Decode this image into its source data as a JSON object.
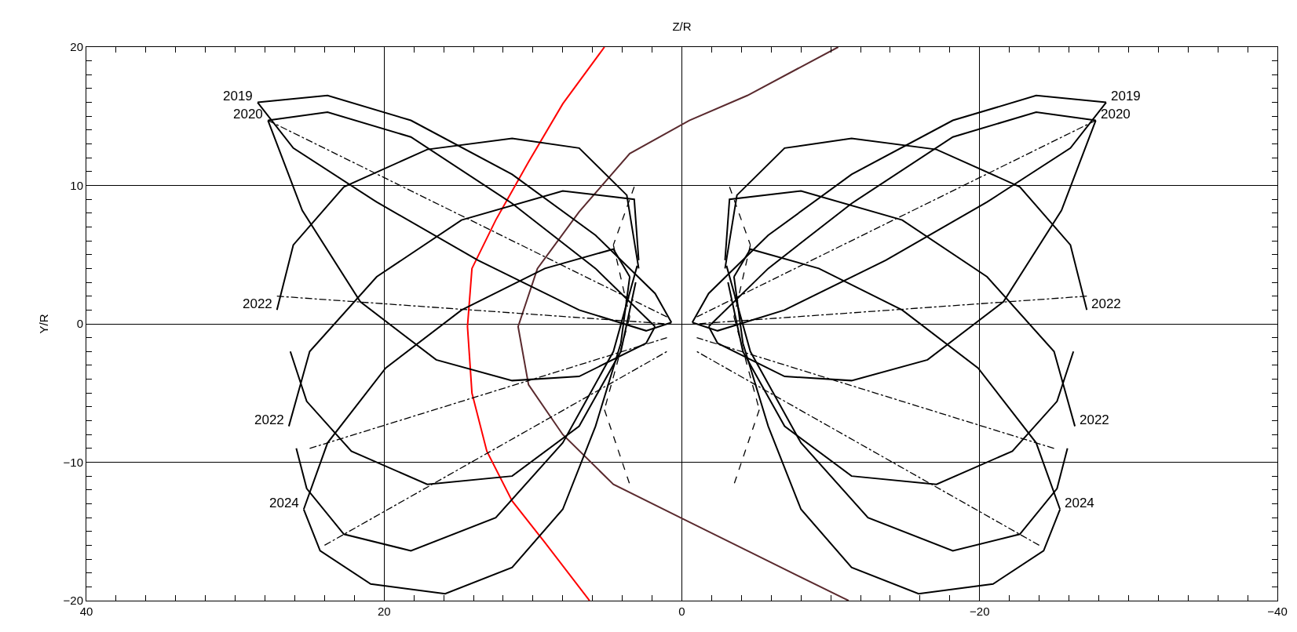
{
  "chart_data": {
    "type": "line",
    "xlabel": "Z/R",
    "ylabel": "Y/R",
    "xlim": [
      40,
      -40
    ],
    "ylim": [
      -20,
      20
    ],
    "xticks": [
      40,
      20,
      0,
      -20,
      -40
    ],
    "yticks": [
      -20,
      -10,
      0,
      10,
      20
    ],
    "grid": true,
    "marker": "none",
    "series": [
      {
        "color": "#ff0000",
        "line_style": "solid",
        "x": [
          5.2,
          8.0,
          10.3,
          12.5,
          14.1,
          14.4,
          14.1,
          13.1,
          11.4,
          9.2,
          6.2
        ],
        "values": [
          20,
          15.9,
          11.7,
          7.5,
          4.0,
          -0.2,
          -5.0,
          -9.2,
          -12.8,
          -15.8,
          -20
        ]
      },
      {
        "color": "#5a2a2e",
        "line_style": "solid",
        "x": [
          -10.5,
          -4.4,
          -0.5,
          3.5,
          6.9,
          9.7,
          11.0,
          10.3,
          8.0,
          4.6,
          0.1,
          -4.4,
          -11.2
        ],
        "values": [
          20,
          16.5,
          14.7,
          12.3,
          8.1,
          4.0,
          -0.2,
          -4.4,
          -8.0,
          -11.6,
          -14.0,
          -16.4,
          -20
        ]
      },
      {
        "color": "#000000",
        "line_style": "solid",
        "x": [
          28.5,
          23.8,
          18.2,
          11.4,
          5.8,
          1.8,
          0.7
        ],
        "values": [
          16.0,
          16.5,
          14.7,
          10.8,
          6.4,
          2.2,
          0.1
        ]
      },
      {
        "color": "#000000",
        "line_style": "solid",
        "x": [
          0.7,
          2.4,
          6.9,
          13.7,
          20.5,
          26.1,
          28.5
        ],
        "values": [
          0.1,
          -0.5,
          1.0,
          4.6,
          8.8,
          12.7,
          16.0
        ]
      },
      {
        "color": "#000000",
        "line_style": "solid",
        "x": [
          27.2,
          26.1,
          22.7,
          17.1,
          11.4,
          6.9,
          3.7,
          2.9
        ],
        "values": [
          1.0,
          5.7,
          9.9,
          12.6,
          13.4,
          12.7,
          9.3,
          4.0
        ]
      },
      {
        "color": "#000000",
        "line_style": "solid",
        "x": [
          3.1,
          4.1,
          6.9,
          11.4,
          17.1,
          22.2,
          25.2,
          26.3
        ],
        "values": [
          3.0,
          -2.0,
          -7.4,
          -11.0,
          -11.6,
          -9.2,
          -5.6,
          -2.0
        ]
      },
      {
        "color": "#000000",
        "line_style": "solid",
        "x": [
          26.4,
          25.0,
          20.5,
          14.8,
          8.0,
          3.2,
          2.9
        ],
        "values": [
          -7.4,
          -2.0,
          3.4,
          7.5,
          9.6,
          9.0,
          4.6
        ]
      },
      {
        "color": "#000000",
        "line_style": "solid",
        "x": [
          3.0,
          4.6,
          8.0,
          12.5,
          18.2,
          22.7,
          25.2,
          25.9
        ],
        "values": [
          4.2,
          -2.0,
          -8.6,
          -14.0,
          -16.4,
          -15.2,
          -11.9,
          -9.0
        ]
      },
      {
        "color": "#000000",
        "line_style": "solid",
        "x": [
          25.4,
          23.8,
          19.9,
          14.8,
          9.2,
          4.6,
          3.5
        ],
        "values": [
          -13.4,
          -8.6,
          -3.2,
          1.0,
          4.0,
          5.4,
          3.4
        ]
      },
      {
        "color": "#000000",
        "line_style": "solid",
        "x": [
          3.5,
          4.1,
          5.8,
          8.0,
          11.4,
          15.9,
          20.9,
          24.3,
          25.4
        ],
        "values": [
          3.4,
          -1.4,
          -7.4,
          -13.4,
          -17.6,
          -19.5,
          -18.8,
          -16.4,
          -13.4
        ]
      },
      {
        "color": "#000000",
        "line_style": "solid",
        "x": [
          27.8,
          23.8,
          18.2,
          11.4,
          5.8,
          1.8
        ],
        "values": [
          14.7,
          15.3,
          13.5,
          8.7,
          4.0,
          -0.2
        ]
      },
      {
        "color": "#000000",
        "line_style": "solid",
        "x": [
          1.8,
          2.4,
          6.9,
          11.4,
          16.5,
          21.6,
          25.5,
          27.8
        ],
        "values": [
          -0.2,
          -1.4,
          -3.8,
          -4.1,
          -2.6,
          1.6,
          8.2,
          14.7
        ]
      },
      {
        "color": "#000000",
        "line_style": "dashed",
        "x": [
          3.2,
          4.6
        ],
        "values": [
          9.9,
          5.7
        ]
      },
      {
        "color": "#000000",
        "line_style": "dashed",
        "x": [
          4.6,
          3.5
        ],
        "values": [
          5.7,
          0.5
        ]
      },
      {
        "color": "#000000",
        "line_style": "dashed",
        "x": [
          3.5,
          5.2
        ],
        "values": [
          0.5,
          -6.2
        ]
      },
      {
        "color": "#000000",
        "line_style": "dashed",
        "x": [
          5.2,
          3.5
        ],
        "values": [
          -6.2,
          -11.6
        ]
      },
      {
        "color": "#000000",
        "line_style": "dotted",
        "x": [
          27.8,
          1
        ],
        "values": [
          14.7,
          0.5
        ]
      },
      {
        "color": "#000000",
        "line_style": "dotted",
        "x": [
          27.2,
          1
        ],
        "values": [
          2,
          0
        ]
      },
      {
        "color": "#000000",
        "line_style": "dotted",
        "x": [
          25,
          1
        ],
        "values": [
          -9,
          -1
        ]
      },
      {
        "color": "#000000",
        "line_style": "dotted",
        "x": [
          24,
          1
        ],
        "values": [
          -16,
          -2
        ]
      },
      {
        "color": "#000000",
        "line_style": "solid",
        "x": [
          -28.5,
          -23.8,
          -18.2,
          -11.4,
          -5.8,
          -1.8,
          -0.7
        ],
        "values": [
          16.0,
          16.5,
          14.7,
          10.8,
          6.4,
          2.2,
          0.1
        ]
      },
      {
        "color": "#000000",
        "line_style": "solid",
        "x": [
          -0.7,
          -2.4,
          -6.9,
          -13.7,
          -20.5,
          -26.1,
          -28.5
        ],
        "values": [
          0.1,
          -0.5,
          1.0,
          4.6,
          8.8,
          12.7,
          16.0
        ]
      },
      {
        "color": "#000000",
        "line_style": "solid",
        "x": [
          -27.2,
          -26.1,
          -22.7,
          -17.1,
          -11.4,
          -6.9,
          -3.7,
          -2.9
        ],
        "values": [
          1.0,
          5.7,
          9.9,
          12.6,
          13.4,
          12.7,
          9.3,
          4.0
        ]
      },
      {
        "color": "#000000",
        "line_style": "solid",
        "x": [
          -3.1,
          -4.1,
          -6.9,
          -11.4,
          -17.1,
          -22.2,
          -25.2,
          -26.3
        ],
        "values": [
          3.0,
          -2.0,
          -7.4,
          -11.0,
          -11.6,
          -9.2,
          -5.6,
          -2.0
        ]
      },
      {
        "color": "#000000",
        "line_style": "solid",
        "x": [
          -26.4,
          -25.0,
          -20.5,
          -14.8,
          -8.0,
          -3.2,
          -2.9
        ],
        "values": [
          -7.4,
          -2.0,
          3.4,
          7.5,
          9.6,
          9.0,
          4.6
        ]
      },
      {
        "color": "#000000",
        "line_style": "solid",
        "x": [
          -3.0,
          -4.6,
          -8.0,
          -12.5,
          -18.2,
          -22.7,
          -25.2,
          -25.9
        ],
        "values": [
          4.2,
          -2.0,
          -8.6,
          -14.0,
          -16.4,
          -15.2,
          -11.9,
          -9.0
        ]
      },
      {
        "color": "#000000",
        "line_style": "solid",
        "x": [
          -25.4,
          -23.8,
          -19.9,
          -14.8,
          -9.2,
          -4.6,
          -3.5
        ],
        "values": [
          -13.4,
          -8.6,
          -3.2,
          1.0,
          4.0,
          5.4,
          3.4
        ]
      },
      {
        "color": "#000000",
        "line_style": "solid",
        "x": [
          -3.5,
          -4.1,
          -5.8,
          -8.0,
          -11.4,
          -15.9,
          -20.9,
          -24.3,
          -25.4
        ],
        "values": [
          3.4,
          -1.4,
          -7.4,
          -13.4,
          -17.6,
          -19.5,
          -18.8,
          -16.4,
          -13.4
        ]
      },
      {
        "color": "#000000",
        "line_style": "solid",
        "x": [
          -27.8,
          -23.8,
          -18.2,
          -11.4,
          -5.8,
          -1.8
        ],
        "values": [
          14.7,
          15.3,
          13.5,
          8.7,
          4.0,
          -0.2
        ]
      },
      {
        "color": "#000000",
        "line_style": "solid",
        "x": [
          -1.8,
          -2.4,
          -6.9,
          -11.4,
          -16.5,
          -21.6,
          -25.5,
          -27.8
        ],
        "values": [
          -0.2,
          -1.4,
          -3.8,
          -4.1,
          -2.6,
          1.6,
          8.2,
          14.7
        ]
      },
      {
        "color": "#000000",
        "line_style": "dashed",
        "x": [
          -3.2,
          -4.6
        ],
        "values": [
          9.9,
          5.7
        ]
      },
      {
        "color": "#000000",
        "line_style": "dashed",
        "x": [
          -4.6,
          -3.5
        ],
        "values": [
          5.7,
          0.5
        ]
      },
      {
        "color": "#000000",
        "line_style": "dashed",
        "x": [
          -3.5,
          -5.2
        ],
        "values": [
          0.5,
          -6.2
        ]
      },
      {
        "color": "#000000",
        "line_style": "dashed",
        "x": [
          -5.2,
          -3.5
        ],
        "values": [
          -6.2,
          -11.6
        ]
      },
      {
        "color": "#000000",
        "line_style": "dotted",
        "x": [
          -27.8,
          -1
        ],
        "values": [
          14.7,
          0.5
        ]
      },
      {
        "color": "#000000",
        "line_style": "dotted",
        "x": [
          -27.2,
          -1
        ],
        "values": [
          2,
          0
        ]
      },
      {
        "color": "#000000",
        "line_style": "dotted",
        "x": [
          -25,
          -1
        ],
        "values": [
          -9,
          -1
        ]
      },
      {
        "color": "#000000",
        "line_style": "dotted",
        "x": [
          -24,
          -1
        ],
        "values": [
          -16,
          -2
        ]
      }
    ],
    "annotations": [
      {
        "text": "2019",
        "x": 28.5,
        "y": 16.0
      },
      {
        "text": "2020",
        "x": 27.8,
        "y": 14.7
      },
      {
        "text": "2022",
        "x": 27.2,
        "y": 1.0
      },
      {
        "text": "2022",
        "x": 26.4,
        "y": -7.4
      },
      {
        "text": "2024",
        "x": 25.4,
        "y": -13.4
      },
      {
        "text": "2019",
        "x": -28.5,
        "y": 16.0
      },
      {
        "text": "2020",
        "x": -27.8,
        "y": 14.7
      },
      {
        "text": "2022",
        "x": -27.2,
        "y": 1.0
      },
      {
        "text": "2022",
        "x": -26.4,
        "y": -7.4
      },
      {
        "text": "2024",
        "x": -25.4,
        "y": -13.4
      }
    ]
  }
}
